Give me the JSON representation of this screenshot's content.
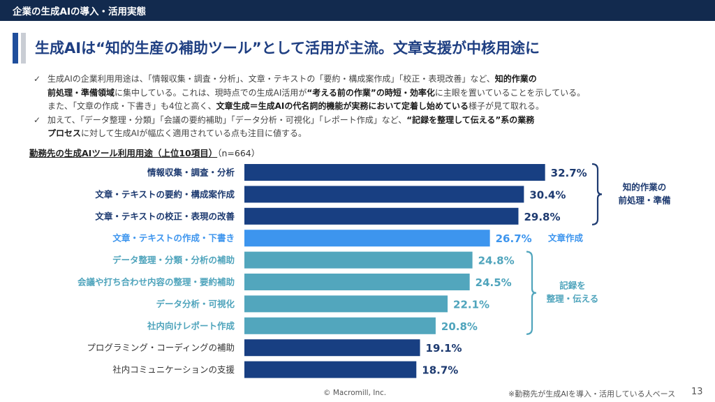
{
  "header": {
    "section_title": "企業の生成AIの導入・活用実態"
  },
  "title": "生成AIは“知的生産の補助ツール”として活用が主流。文章支援が中核用途に",
  "bullets": [
    {
      "icon": "check-icon",
      "lines": [
        [
          "生成AIの企業利用用途は、「情報収集・調査・分析」、文章・テキストの「要約・構成案作成」「校正・表現改善」など、",
          "知的作業の"
        ],
        [
          "",
          "前処理・準備領域",
          "に集中している。これは、現時点での生成AI活用が",
          "“考える前の作業”の時短・効率化",
          "に主眼を置いていることを示している。"
        ],
        [
          "また、「文章の作成・下書き」も4位と高く、",
          "文章生成＝生成AIの代名詞的機能が実務において定着し始めている",
          "様子が見て取れる。"
        ]
      ]
    },
    {
      "icon": "check-icon",
      "lines": [
        [
          "加えて、「データ整理・分類」「会議の要約補助」「データ分析・可視化」「レポート作成」など、",
          "“記録を整理して伝える”系の業務"
        ],
        [
          "",
          "プロセス",
          "に対して生成AIが幅広く適用されている点も注目に値する。"
        ]
      ]
    }
  ],
  "chart_data": {
    "type": "bar",
    "orientation": "horizontal",
    "title": "勤務先の生成AIツール利用用途（上位10項目）",
    "sample_size": "（n=664）",
    "unit": "%",
    "categories": [
      "情報収集・調査・分析",
      "文章・テキストの要約・構成案作成",
      "文章・テキストの校正・表現の改善",
      "文章・テキストの作成・下書き",
      "データ整理・分類・分析の補助",
      "会議や打ち合わせ内容の整理・要約補助",
      "データ分析・可視化",
      "社内向けレポート作成",
      "プログラミング・コーディングの補助",
      "社内コミュニケーションの支援"
    ],
    "values": [
      32.7,
      30.4,
      29.8,
      26.7,
      24.8,
      24.5,
      22.1,
      20.8,
      19.1,
      18.7
    ],
    "value_labels": [
      "32.7%",
      "30.4%",
      "29.8%",
      "26.7%",
      "24.8%",
      "24.5%",
      "22.1%",
      "20.8%",
      "19.1%",
      "18.7%"
    ],
    "bar_colors": [
      "#183f82",
      "#183f82",
      "#183f82",
      "#3d95ee",
      "#52a6bd",
      "#52a6bd",
      "#52a6bd",
      "#52a6bd",
      "#183f82",
      "#183f82"
    ],
    "label_colors": [
      "#1d3a70",
      "#1d3a70",
      "#1d3a70",
      "#3d95ee",
      "#4fa4bc",
      "#4fa4bc",
      "#4fa4bc",
      "#4fa4bc",
      "#333333",
      "#333333"
    ],
    "label_bold": [
      true,
      true,
      true,
      true,
      true,
      true,
      true,
      true,
      false,
      false
    ],
    "groups": [
      {
        "label_lines": [
          "知的作業の",
          "前処理・準備"
        ],
        "from": 0,
        "to": 2,
        "color": "#1d3a70"
      },
      {
        "label_lines": [
          "文章作成"
        ],
        "from": 3,
        "to": 3,
        "color": "#3d95ee"
      },
      {
        "label_lines": [
          "記録を",
          "整理・伝える"
        ],
        "from": 4,
        "to": 7,
        "color": "#4fa4bc"
      }
    ]
  },
  "footer": {
    "copyright": "© Macromill, Inc.",
    "note": "※勤務先が生成AIを導入・活用している人ベース",
    "page": "13"
  }
}
